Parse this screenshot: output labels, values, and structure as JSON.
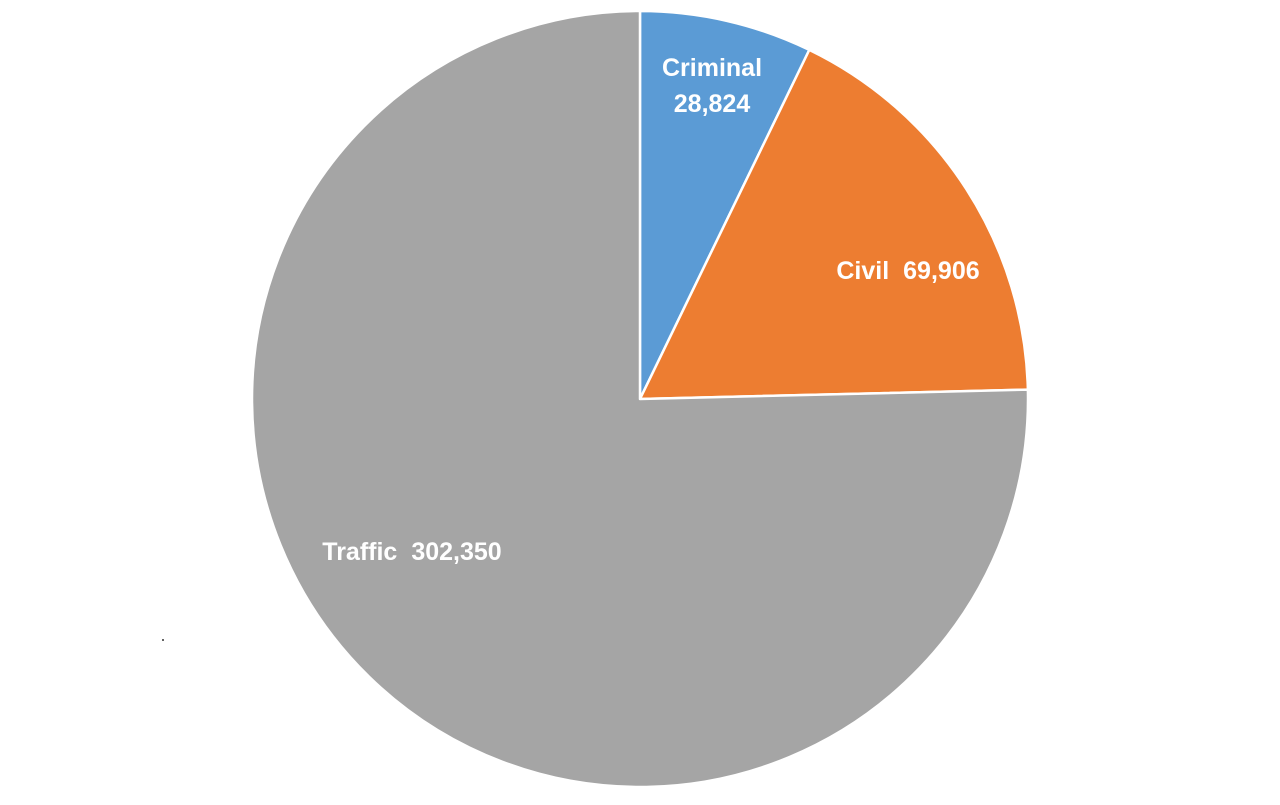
{
  "chart_data": {
    "type": "pie",
    "start_angle_deg": 0,
    "direction": "clockwise",
    "slice_border_color": "#ffffff",
    "label_color": "#ffffff",
    "slices": [
      {
        "key": "criminal",
        "label": "Criminal",
        "value_label": "28,824",
        "value": 28824,
        "color": "#5B9BD5"
      },
      {
        "key": "civil",
        "label": "Civil",
        "value_label": "69,906",
        "value": 69906,
        "color": "#ED7D31"
      },
      {
        "key": "traffic",
        "label": "Traffic",
        "value_label": "302,350",
        "value": 302350,
        "color": "#A5A5A5"
      }
    ]
  }
}
